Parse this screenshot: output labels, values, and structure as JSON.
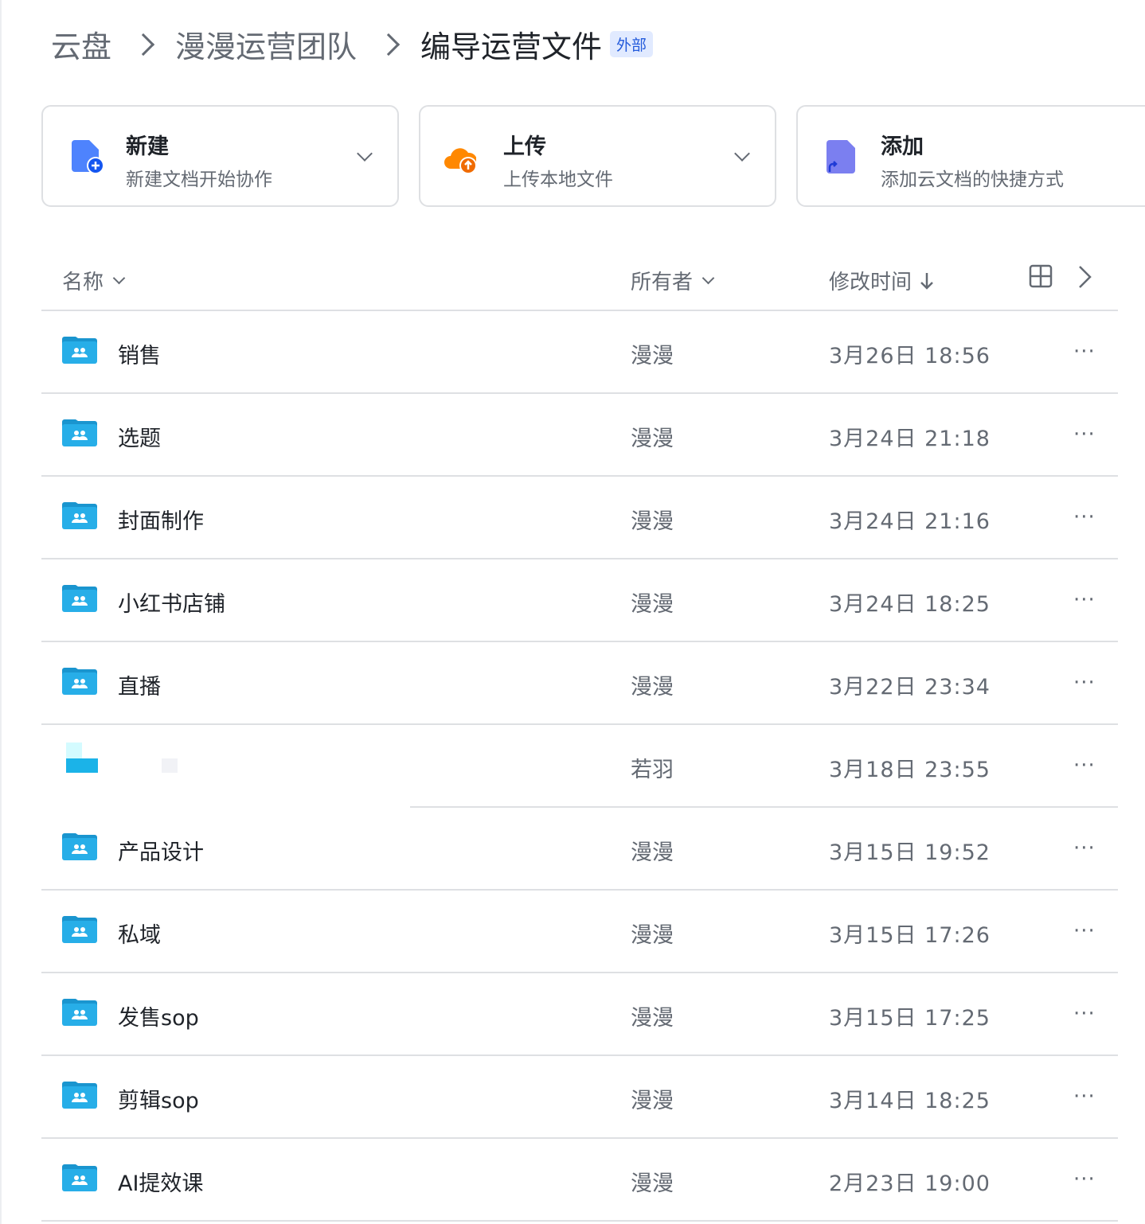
{
  "breadcrumb": [
    "云盘",
    "漫漫运营团队",
    "编导运营文件"
  ],
  "badge": "外部",
  "cards": [
    {
      "title": "新建",
      "subtitle": "新建文档开始协作",
      "icon": "new-doc-icon",
      "color": "#4e83fd"
    },
    {
      "title": "上传",
      "subtitle": "上传本地文件",
      "icon": "upload-cloud-icon",
      "color": "#ff8800"
    },
    {
      "title": "添加",
      "subtitle": "添加云文档的快捷方式",
      "icon": "shortcut-icon",
      "color": "#7b7ff0"
    }
  ],
  "table": {
    "headers": {
      "name": "名称",
      "owner": "所有者",
      "modified": "修改时间"
    },
    "sort": "modified-desc",
    "rows": [
      {
        "name": "销售",
        "owner": "漫漫",
        "time": "3月26日 18:56"
      },
      {
        "name": "选题",
        "owner": "漫漫",
        "time": "3月24日 21:18"
      },
      {
        "name": "封面制作",
        "owner": "漫漫",
        "time": "3月24日 21:16"
      },
      {
        "name": "小红书店铺",
        "owner": "漫漫",
        "time": "3月24日 18:25"
      },
      {
        "name": "直播",
        "owner": "漫漫",
        "time": "3月22日 23:34"
      },
      {
        "name": "",
        "owner": "若羽",
        "time": "3月18日 23:55",
        "redacted": true
      },
      {
        "name": "产品设计",
        "owner": "漫漫",
        "time": "3月15日 19:52"
      },
      {
        "name": "私域",
        "owner": "漫漫",
        "time": "3月15日 17:26"
      },
      {
        "name": "发售sop",
        "owner": "漫漫",
        "time": "3月15日 17:25"
      },
      {
        "name": "剪辑sop",
        "owner": "漫漫",
        "time": "3月14日 18:25"
      },
      {
        "name": "AI提效课",
        "owner": "漫漫",
        "time": "2月23日 19:00"
      }
    ],
    "more_label": "···"
  },
  "colors": {
    "folder": "#27aee8",
    "folder_tab": "#1a95cf",
    "border": "#dee0e3"
  }
}
